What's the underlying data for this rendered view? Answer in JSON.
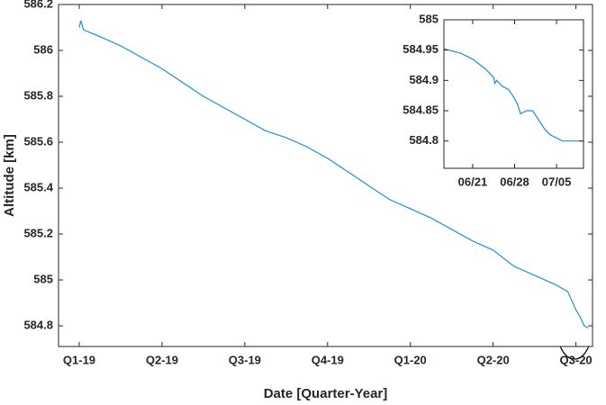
{
  "chart_data": [
    {
      "type": "line",
      "xlabel": "Date [Quarter-Year]",
      "ylabel": "Altitude [km]",
      "x": [
        0,
        0.02,
        0.05,
        0.25,
        0.5,
        0.75,
        1.0,
        1.25,
        1.5,
        1.75,
        2.0,
        2.25,
        2.5,
        2.75,
        3.0,
        3.25,
        3.5,
        3.75,
        4.0,
        4.25,
        4.5,
        4.75,
        5.0,
        5.25,
        5.5,
        5.75,
        5.9,
        6.0,
        6.05,
        6.1,
        6.15
      ],
      "values": [
        586.1,
        586.13,
        586.09,
        586.06,
        586.02,
        585.97,
        585.92,
        585.86,
        585.8,
        585.75,
        585.7,
        585.65,
        585.62,
        585.58,
        585.53,
        585.47,
        585.41,
        585.35,
        585.31,
        585.27,
        585.22,
        585.17,
        585.13,
        585.06,
        585.02,
        584.98,
        584.95,
        584.87,
        584.84,
        584.8,
        584.79
      ],
      "color": "#1f8fd6",
      "xlim": [
        -0.25,
        6.2
      ],
      "xticks": [
        {
          "value": 0,
          "label": "Q1-19"
        },
        {
          "value": 1,
          "label": "Q2-19"
        },
        {
          "value": 2,
          "label": "Q3-19"
        },
        {
          "value": 3,
          "label": "Q4-19"
        },
        {
          "value": 4,
          "label": "Q1-20"
        },
        {
          "value": 5,
          "label": "Q2-20"
        },
        {
          "value": 6,
          "label": "Q3-20"
        }
      ],
      "ylim": [
        584.71,
        586.2
      ],
      "yticks": [
        584.8,
        585,
        585.2,
        585.4,
        585.6,
        585.8,
        586,
        586.2
      ]
    },
    {
      "type": "line",
      "x": [
        -4.8,
        -2,
        0,
        2,
        3.5,
        3.7,
        4,
        5,
        6,
        7,
        7.5,
        8,
        9,
        10,
        11,
        12,
        13,
        14,
        15,
        16,
        18.3
      ],
      "values": [
        584.952,
        584.945,
        584.935,
        584.92,
        584.905,
        584.895,
        584.9,
        584.89,
        584.885,
        584.87,
        584.86,
        584.845,
        584.85,
        584.85,
        584.835,
        584.82,
        584.81,
        584.805,
        584.8,
        584.8,
        584.8
      ],
      "color": "#1f8fd6",
      "xlim": [
        -4.8,
        18.5
      ],
      "xticks": [
        {
          "value": 0,
          "label": "06/21"
        },
        {
          "value": 7,
          "label": "06/28"
        },
        {
          "value": 14,
          "label": "07/05"
        }
      ],
      "ylim": [
        584.755,
        585
      ],
      "yticks": [
        584.8,
        584.85,
        584.9,
        584.95,
        585
      ]
    }
  ]
}
